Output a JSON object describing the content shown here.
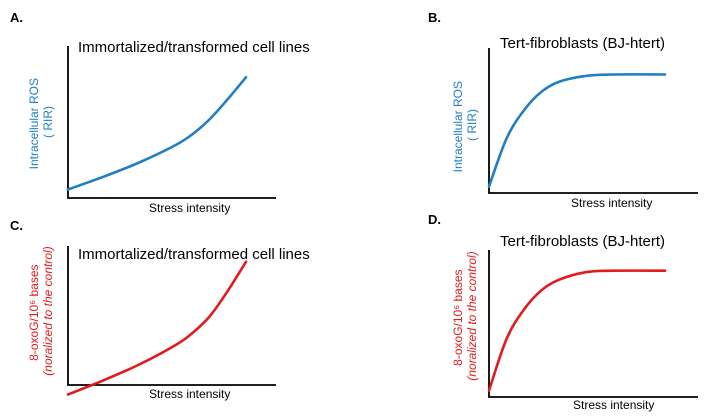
{
  "colors": {
    "blue": "#1f7fc0",
    "red": "#e31a1c",
    "axis": "#000000"
  },
  "chart_data": [
    {
      "panel": "A.",
      "type": "line",
      "title": "Immortalized/transformed cell lines",
      "xlabel": "Stress intensity",
      "ylabel": [
        "Intracellular ROS",
        "( RIR)"
      ],
      "color": "blue",
      "xlim": [
        0,
        1
      ],
      "ylim": [
        0,
        1
      ],
      "x": [
        0,
        0.2,
        0.4,
        0.6,
        0.7,
        0.8,
        0.9,
        1.0
      ],
      "y": [
        0.06,
        0.15,
        0.25,
        0.37,
        0.45,
        0.56,
        0.7,
        0.85
      ]
    },
    {
      "panel": "B.",
      "type": "line",
      "title": "Tert-fibroblasts (BJ-htert)",
      "xlabel": "Stress intensity",
      "ylabel": [
        "Intracellular ROS",
        "( RIR)"
      ],
      "color": "blue",
      "xlim": [
        0,
        1
      ],
      "ylim": [
        0,
        1
      ],
      "x": [
        0,
        0.1,
        0.2,
        0.3,
        0.4,
        0.55,
        0.7,
        1.0
      ],
      "y": [
        0.08,
        0.42,
        0.62,
        0.75,
        0.82,
        0.86,
        0.87,
        0.87
      ]
    },
    {
      "panel": "C.",
      "type": "line",
      "title": "Immortalized/transformed cell lines",
      "xlabel": "Stress intensity",
      "ylabel": [
        "8-oxoG/10⁶ bases",
        "(noralized to the control)"
      ],
      "color": "red",
      "xlim": [
        0,
        1
      ],
      "ylim": [
        0,
        1
      ],
      "x": [
        0,
        0.2,
        0.4,
        0.6,
        0.7,
        0.8,
        0.9,
        1.0
      ],
      "y": [
        0.06,
        0.15,
        0.25,
        0.37,
        0.45,
        0.56,
        0.72,
        0.9
      ]
    },
    {
      "panel": "D.",
      "type": "line",
      "title": "Tert-fibroblasts (BJ-htert)",
      "xlabel": "Stress intensity",
      "ylabel": [
        "8-oxoG/10⁶ bases",
        "(noralized to the control)"
      ],
      "color": "red",
      "xlim": [
        0,
        1
      ],
      "ylim": [
        0,
        1
      ],
      "x": [
        0,
        0.1,
        0.2,
        0.3,
        0.4,
        0.55,
        0.7,
        1.0
      ],
      "y": [
        0.05,
        0.4,
        0.6,
        0.73,
        0.8,
        0.85,
        0.86,
        0.86
      ]
    }
  ]
}
